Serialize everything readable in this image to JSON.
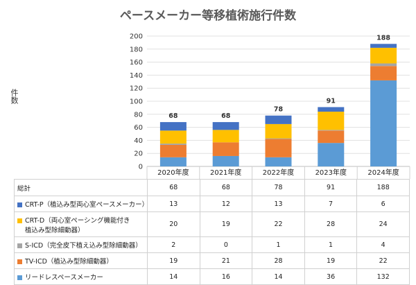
{
  "chart_data": {
    "type": "bar",
    "stacked": true,
    "title": "ペースメーカー等移植術施行件数",
    "ylabel": "件数",
    "ylim": [
      0,
      200
    ],
    "yticks": [
      0,
      20,
      40,
      60,
      80,
      100,
      120,
      140,
      160,
      180,
      200
    ],
    "categories": [
      "2020年度",
      "2021年度",
      "2022年度",
      "2023年度",
      "2024年度"
    ],
    "series": [
      {
        "name": "リードレスペースメーカー",
        "color": "#5b9bd5",
        "values": [
          14,
          16,
          14,
          36,
          132
        ]
      },
      {
        "name": "TV-ICD（植込み型除細動器）",
        "color": "#ed7d31",
        "values": [
          19,
          21,
          28,
          19,
          22
        ]
      },
      {
        "name": "S-ICD（完全皮下植え込み型除細動器）",
        "color": "#a5a5a5",
        "values": [
          2,
          0,
          1,
          1,
          4
        ]
      },
      {
        "name": "CRT-D（両心室ペーシング機能付き植込み型除細動器）",
        "name_line1": "CRT-D（両心室ペーシング機能付き",
        "name_line2": "植込み型除細動器）",
        "color": "#ffc000",
        "values": [
          20,
          19,
          22,
          28,
          24
        ]
      },
      {
        "name": "CRT-P（植込み型両心室ペースメーカー）",
        "color": "#4472c4",
        "values": [
          13,
          12,
          13,
          7,
          6
        ]
      }
    ],
    "totals_label": "総計",
    "totals": [
      68,
      68,
      78,
      91,
      188
    ]
  }
}
